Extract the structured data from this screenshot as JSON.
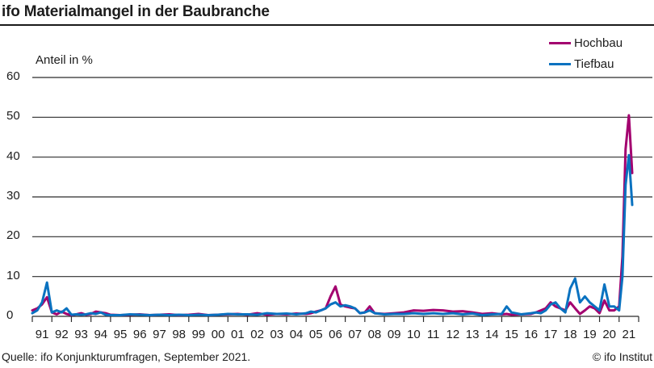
{
  "header": {
    "title": "ifo Materialmangel in der Baubranche"
  },
  "legend": [
    {
      "label": "Hochbau",
      "color": "#a3006f"
    },
    {
      "label": "Tiefbau",
      "color": "#0a72c0"
    }
  ],
  "footer": {
    "source": "Quelle: ifo Konjunkturumfragen, September 2021.",
    "copyright": "© ifo Institut"
  },
  "chart_data": {
    "type": "line",
    "title": "ifo Materialmangel in der Baubranche",
    "xlabel": "",
    "ylabel": "Anteil in %",
    "ylim": [
      0,
      60
    ],
    "yticks": [
      0,
      10,
      20,
      30,
      40,
      50,
      60
    ],
    "xticks": [
      "91",
      "92",
      "93",
      "94",
      "95",
      "96",
      "97",
      "98",
      "99",
      "00",
      "01",
      "02",
      "03",
      "04",
      "05",
      "06",
      "07",
      "08",
      "09",
      "10",
      "11",
      "12",
      "13",
      "14",
      "15",
      "16",
      "17",
      "18",
      "19",
      "20",
      "21"
    ],
    "grid": "horizontal",
    "legend_position": "top-right",
    "x_resolution": "quarterly (year fractions from 1991.0)",
    "x": [
      1991.0,
      1991.25,
      1991.5,
      1991.75,
      1992.0,
      1992.25,
      1992.5,
      1992.75,
      1993.0,
      1993.25,
      1993.5,
      1993.75,
      1994.0,
      1994.25,
      1994.5,
      1994.75,
      1995.0,
      1995.5,
      1996.0,
      1996.5,
      1997.0,
      1997.5,
      1998.0,
      1998.5,
      1999.0,
      1999.5,
      2000.0,
      2000.5,
      2001.0,
      2001.5,
      2002.0,
      2002.5,
      2003.0,
      2003.5,
      2004.0,
      2004.5,
      2005.0,
      2005.25,
      2005.5,
      2005.75,
      2006.0,
      2006.25,
      2006.5,
      2006.75,
      2007.0,
      2007.25,
      2007.5,
      2007.75,
      2008.0,
      2008.25,
      2008.5,
      2009.0,
      2009.5,
      2010.0,
      2010.5,
      2011.0,
      2011.5,
      2012.0,
      2012.5,
      2013.0,
      2013.5,
      2014.0,
      2014.5,
      2015.0,
      2015.25,
      2015.5,
      2016.0,
      2016.5,
      2016.75,
      2017.0,
      2017.25,
      2017.5,
      2017.75,
      2018.0,
      2018.25,
      2018.5,
      2018.75,
      2019.0,
      2019.25,
      2019.5,
      2019.75,
      2020.0,
      2020.25,
      2020.5,
      2020.75,
      2021.0,
      2021.17,
      2021.33,
      2021.5,
      2021.67
    ],
    "series": [
      {
        "name": "Hochbau",
        "color": "#a3006f",
        "values": [
          1.5,
          2.0,
          3.0,
          4.8,
          1.0,
          0.5,
          1.2,
          0.6,
          0.3,
          0.5,
          0.8,
          0.4,
          0.6,
          1.2,
          1.0,
          0.8,
          0.4,
          0.3,
          0.4,
          0.5,
          0.3,
          0.4,
          0.5,
          0.3,
          0.4,
          0.6,
          0.3,
          0.4,
          0.5,
          0.6,
          0.4,
          0.8,
          0.4,
          0.6,
          0.5,
          0.7,
          0.6,
          0.8,
          1.2,
          1.5,
          2.0,
          5.0,
          7.5,
          3.0,
          2.5,
          2.2,
          2.0,
          0.8,
          1.0,
          2.5,
          0.8,
          0.6,
          0.8,
          1.0,
          1.5,
          1.4,
          1.6,
          1.5,
          1.2,
          1.3,
          1.0,
          0.6,
          0.8,
          0.5,
          0.6,
          0.4,
          0.5,
          0.6,
          1.0,
          1.5,
          2.0,
          3.5,
          2.5,
          2.0,
          1.5,
          3.5,
          2.0,
          0.6,
          1.5,
          2.5,
          2.0,
          0.8,
          4.0,
          1.5,
          1.5,
          2.5,
          15.0,
          42.0,
          50.5,
          36.0
        ]
      },
      {
        "name": "Tiefbau",
        "color": "#0a72c0",
        "values": [
          0.8,
          1.5,
          3.5,
          8.5,
          1.0,
          1.5,
          1.0,
          2.0,
          0.4,
          0.5,
          0.4,
          0.5,
          0.8,
          0.6,
          1.0,
          0.4,
          0.3,
          0.3,
          0.5,
          0.4,
          0.3,
          0.4,
          0.3,
          0.4,
          0.3,
          0.4,
          0.3,
          0.4,
          0.6,
          0.5,
          0.5,
          0.4,
          0.8,
          0.6,
          0.7,
          0.5,
          0.8,
          1.2,
          1.0,
          1.5,
          2.0,
          3.0,
          3.5,
          2.5,
          2.8,
          2.5,
          2.0,
          0.8,
          1.0,
          1.5,
          0.8,
          0.5,
          0.6,
          0.6,
          0.8,
          0.6,
          0.8,
          0.6,
          0.8,
          0.5,
          0.7,
          0.3,
          0.5,
          0.6,
          2.5,
          1.0,
          0.5,
          0.8,
          1.0,
          0.8,
          1.5,
          3.0,
          3.5,
          2.0,
          1.0,
          7.0,
          9.5,
          3.5,
          5.0,
          3.5,
          2.5,
          1.5,
          8.0,
          2.5,
          2.5,
          1.5,
          10.0,
          33.0,
          40.5,
          28.0
        ]
      }
    ]
  }
}
